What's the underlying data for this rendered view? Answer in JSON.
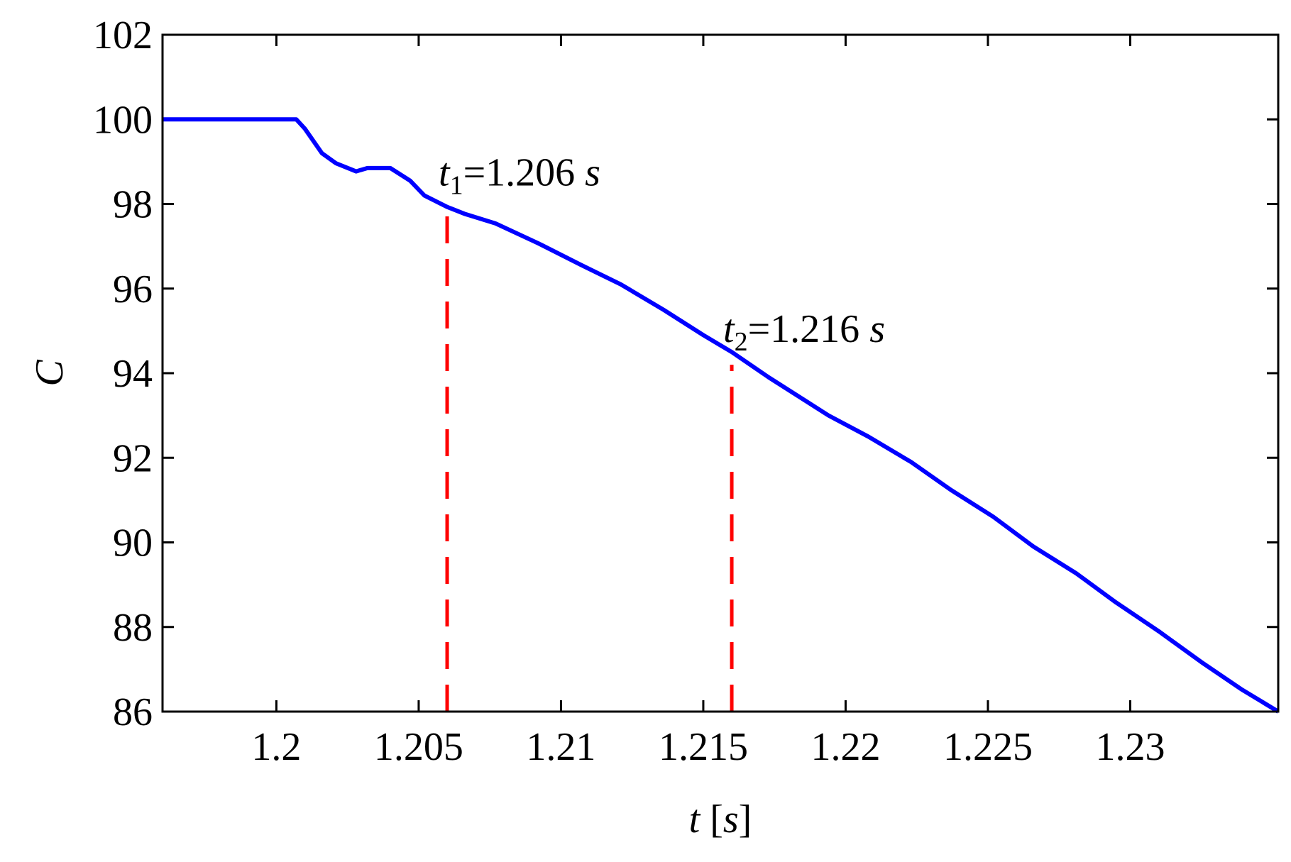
{
  "chart_data": {
    "type": "line",
    "xlabel_parts": [
      "t",
      " [",
      "s",
      "]"
    ],
    "ylabel": "C",
    "xlim": [
      1.196,
      1.2352
    ],
    "ylim": [
      86,
      102
    ],
    "xticks": [
      1.2,
      1.205,
      1.21,
      1.215,
      1.22,
      1.225,
      1.23
    ],
    "yticks": [
      86,
      88,
      90,
      92,
      94,
      96,
      98,
      100,
      102
    ],
    "x": [
      1.196,
      1.2007,
      1.201,
      1.2016,
      1.2021,
      1.2028,
      1.2032,
      1.204,
      1.2047,
      1.2052,
      1.206,
      1.2066,
      1.2077,
      1.2092,
      1.2107,
      1.2121,
      1.2136,
      1.215,
      1.216,
      1.2173,
      1.2194,
      1.2208,
      1.2223,
      1.2237,
      1.2252,
      1.2266,
      1.2281,
      1.2295,
      1.231,
      1.2325,
      1.2339,
      1.2352
    ],
    "series": [
      {
        "color": "#0000ff",
        "values": [
          100,
          100,
          99.78,
          99.2,
          98.96,
          98.77,
          98.85,
          98.85,
          98.55,
          98.2,
          97.93,
          97.77,
          97.54,
          97.07,
          96.56,
          96.1,
          95.5,
          94.9,
          94.5,
          93.9,
          93.0,
          92.5,
          91.9,
          91.24,
          90.6,
          89.9,
          89.27,
          88.58,
          87.9,
          87.17,
          86.53,
          86.0
        ]
      }
    ],
    "markers": [
      {
        "x": 1.206,
        "ymax": 97.9,
        "color": "#ff0000",
        "label_parts": [
          "t",
          "1",
          "=1.206 ",
          "s"
        ]
      },
      {
        "x": 1.216,
        "ymax": 94.2,
        "color": "#ff0000",
        "label_parts": [
          "t",
          "2",
          "=1.216 ",
          "s"
        ]
      }
    ]
  }
}
